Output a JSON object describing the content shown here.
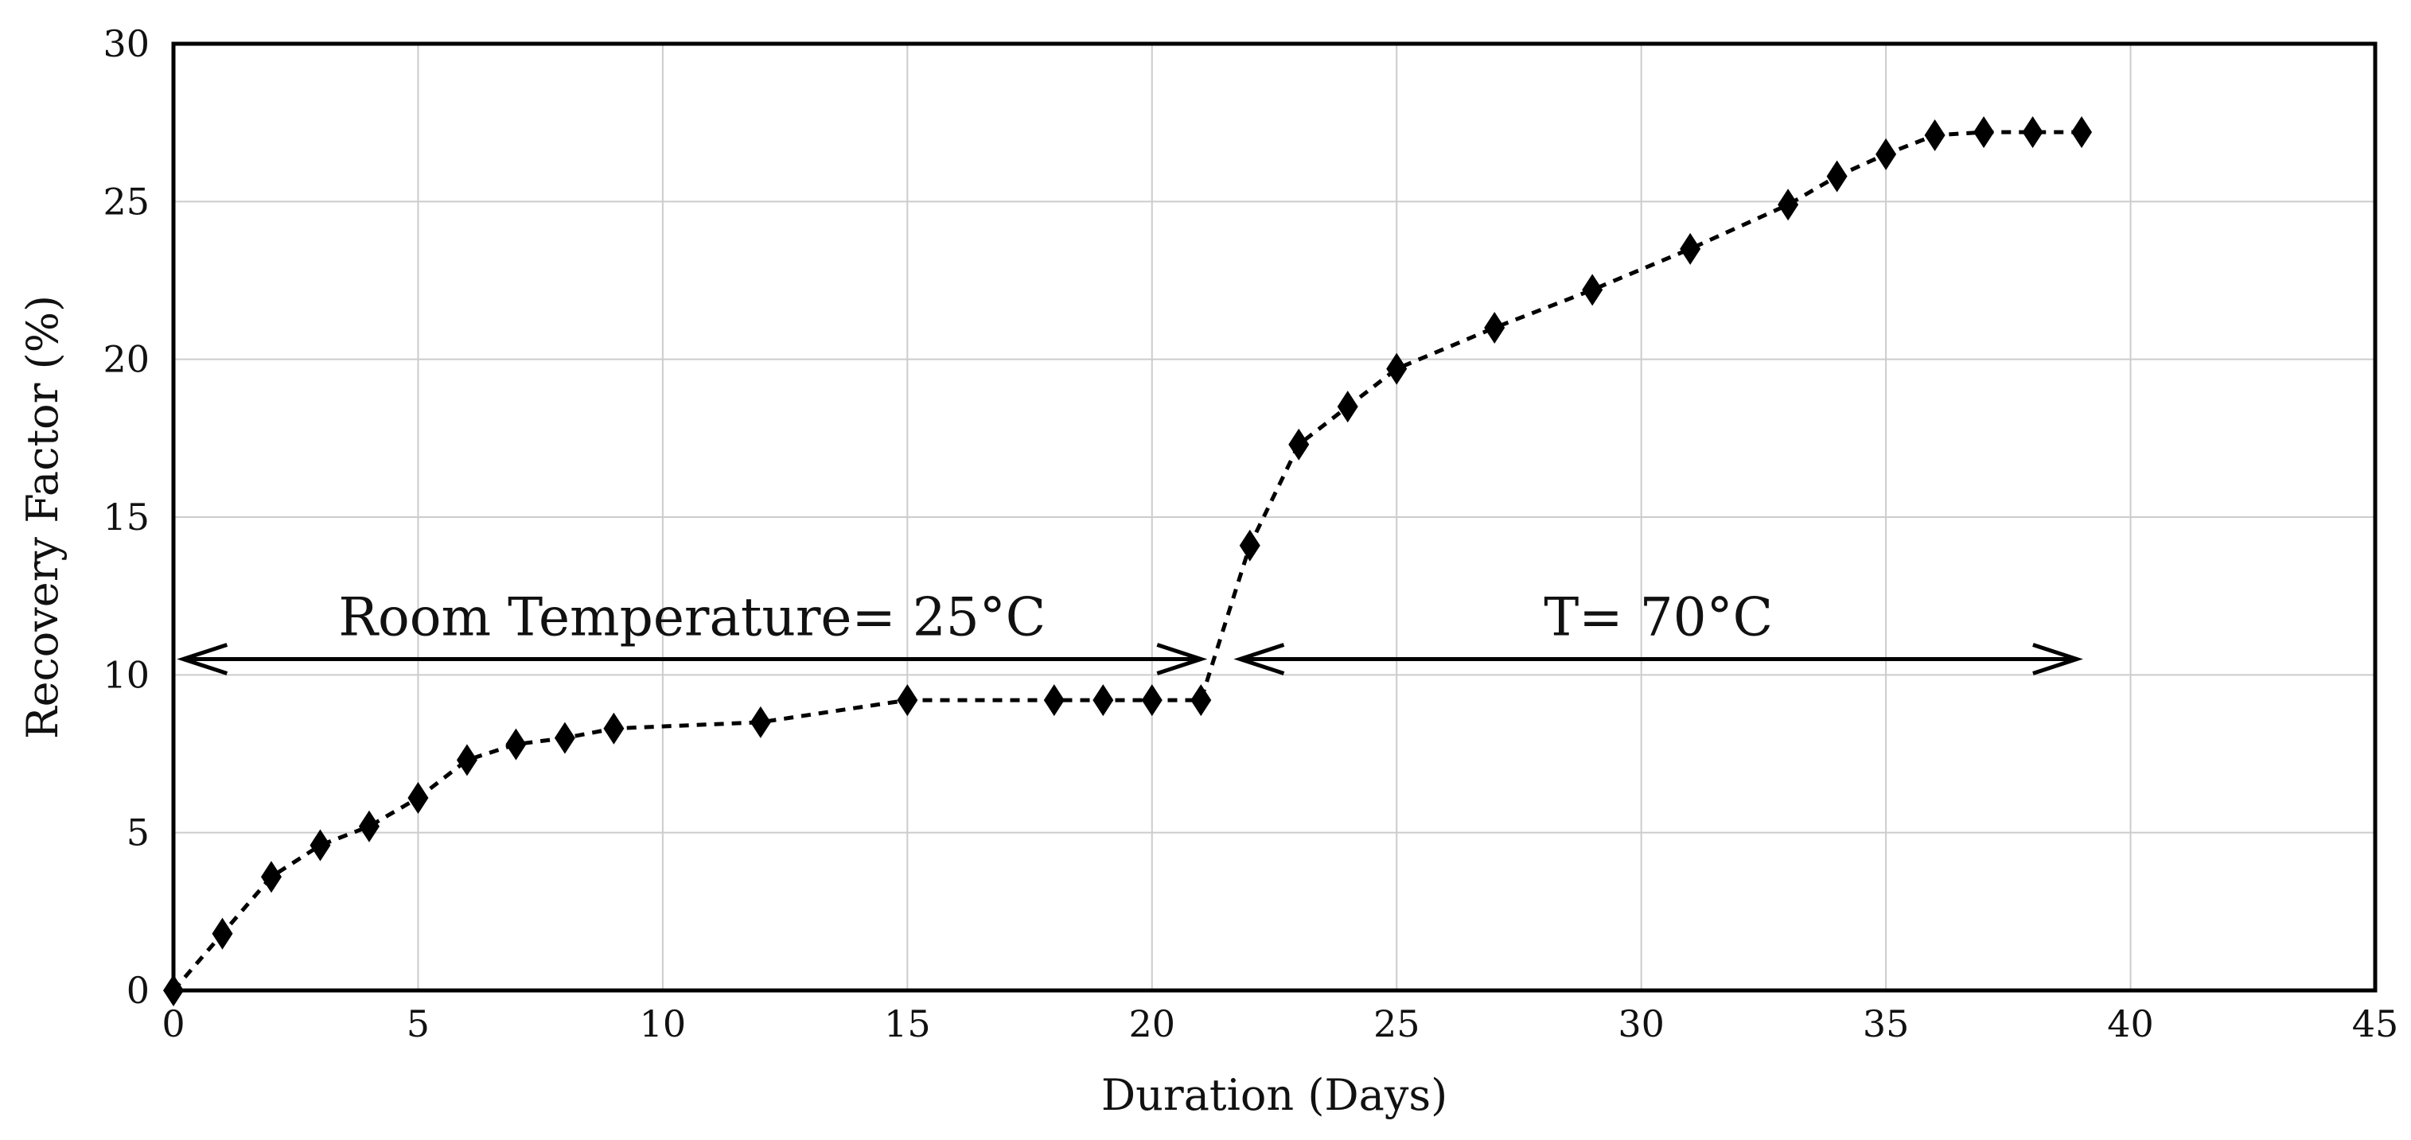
{
  "chart_data": {
    "type": "line",
    "title": "",
    "xlabel": "Duration (Days)",
    "ylabel": "Recovery Factor (%)",
    "xlim": [
      0,
      45
    ],
    "ylim": [
      0,
      30
    ],
    "xticks": [
      0,
      5,
      10,
      15,
      20,
      25,
      30,
      35,
      40,
      45
    ],
    "yticks": [
      0,
      5,
      10,
      15,
      20,
      25,
      30
    ],
    "grid": true,
    "series": [
      {
        "name": "Recovery Factor",
        "marker": "diamond",
        "line_style": "dotted",
        "x": [
          0,
          1,
          2,
          3,
          4,
          5,
          6,
          7,
          8,
          9,
          12,
          15,
          18,
          19,
          20,
          21,
          22,
          23,
          24,
          25,
          27,
          29,
          31,
          33,
          34,
          35,
          36,
          37,
          38,
          39
        ],
        "y": [
          0,
          1.8,
          3.6,
          4.6,
          5.2,
          6.1,
          7.3,
          7.8,
          8.0,
          8.3,
          8.5,
          9.2,
          9.2,
          9.2,
          9.2,
          9.2,
          14.1,
          17.3,
          18.5,
          19.7,
          21.0,
          22.2,
          23.5,
          24.9,
          25.8,
          26.5,
          27.1,
          27.2,
          27.2,
          27.2
        ]
      }
    ],
    "annotations": [
      {
        "text": "Room Temperature= 25°C",
        "x_start": 0.2,
        "x_end": 21.0,
        "y": 10.5
      },
      {
        "text": "T= 70°C",
        "x_start": 21.8,
        "x_end": 38.9,
        "y": 10.5
      }
    ],
    "colors": {
      "line": "#000000",
      "marker": "#000000",
      "grid": "#cccccc",
      "frame": "#000000"
    }
  }
}
